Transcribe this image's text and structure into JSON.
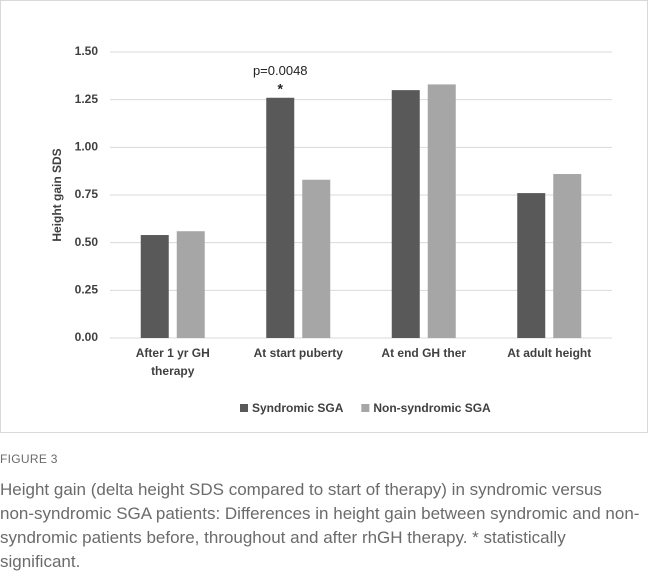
{
  "chart_data": {
    "type": "bar",
    "y_label": "Height gain SDS",
    "categories": [
      "After 1 yr GH therapy",
      "At start puberty",
      "At end GH ther",
      "At adult height"
    ],
    "series": [
      {
        "name": "Syndromic SGA",
        "color": "#595959",
        "values": [
          0.54,
          1.26,
          1.3,
          0.76
        ]
      },
      {
        "name": "Non-syndromic SGA",
        "color": "#a6a6a6",
        "values": [
          0.56,
          0.83,
          1.33,
          0.86
        ]
      }
    ],
    "annotations": [
      "p=0.0048",
      "*"
    ],
    "ylim": [
      0,
      1.5
    ],
    "yticks": [
      {
        "value": 0,
        "label": "0.00"
      },
      0.25,
      {
        "value": 0.5,
        "label": "0.50"
      },
      0.75,
      {
        "value": 1,
        "label": "1.00"
      },
      1.25,
      {
        "value": 1.5,
        "label": "1.50"
      }
    ],
    "grid": true
  },
  "figure": {
    "label": "FIGURE 3",
    "caption": "Height gain (delta height SDS compared to start of therapy) in syndromic versus non-syndromic SGA patients: Differences in height gain between syndromic and non-syndromic patients before, throughout and after rhGH therapy. * statistically significant."
  }
}
